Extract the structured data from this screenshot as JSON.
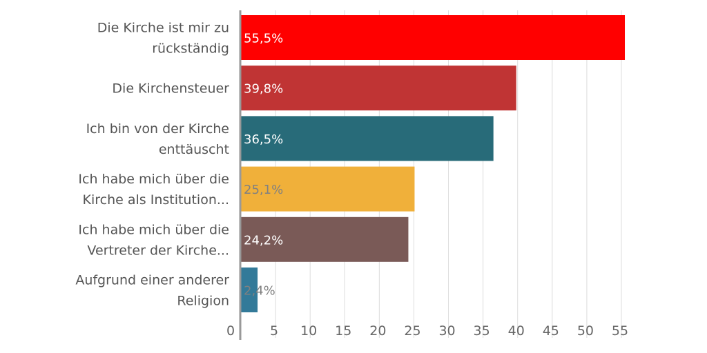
{
  "chart_data": {
    "type": "bar",
    "orientation": "horizontal",
    "categories": [
      [
        "Die Kirche ist mir zu",
        "rückständig"
      ],
      [
        "Die Kirchensteuer"
      ],
      [
        "Ich bin von der Kirche",
        "enttäuscht"
      ],
      [
        "Ich habe mich über die",
        "Kirche als Institution..."
      ],
      [
        "Ich habe mich über die",
        "Vertreter der Kirche..."
      ],
      [
        "Aufgrund einer anderer",
        "Religion"
      ]
    ],
    "values": [
      55.5,
      39.8,
      36.5,
      25.1,
      24.2,
      2.4
    ],
    "value_labels": [
      "55,5%",
      "39,8%",
      "36,5%",
      "25,1%",
      "24,2%",
      "2,4%"
    ],
    "colors": [
      "#ff0000",
      "#c03434",
      "#286b79",
      "#f0b03a",
      "#7a5a57",
      "#337a99"
    ],
    "label_colors": [
      "#ffffff",
      "#ffffff",
      "#ffffff",
      "#808080",
      "#ffffff",
      "#808080"
    ],
    "x_ticks": [
      0,
      5,
      10,
      15,
      20,
      25,
      30,
      35,
      40,
      45,
      50,
      55
    ],
    "xlim": [
      0,
      55
    ],
    "grid": true,
    "legend": "none",
    "title": "",
    "xlabel": "",
    "ylabel": ""
  }
}
